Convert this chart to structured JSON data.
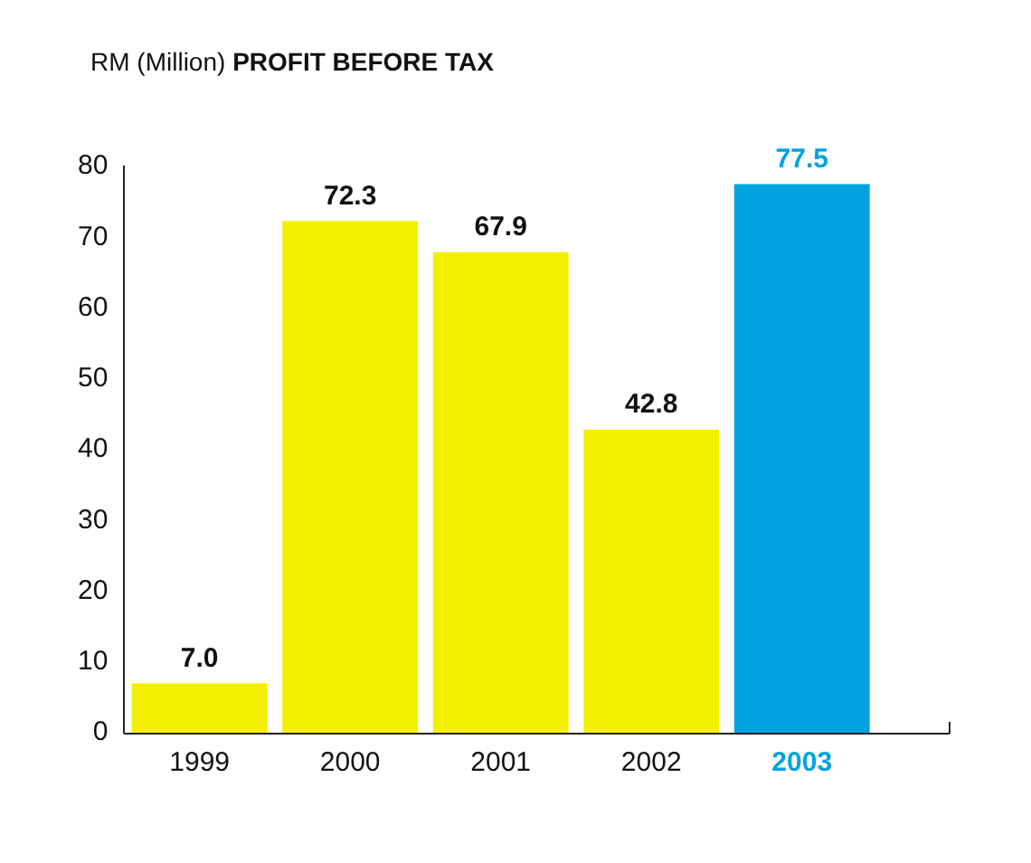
{
  "chart_data": {
    "type": "bar",
    "title": "PROFIT BEFORE TAX",
    "ylabel": "RM (Million)",
    "categories": [
      "1999",
      "2000",
      "2001",
      "2002",
      "2003"
    ],
    "values": [
      7.0,
      72.3,
      67.9,
      42.8,
      77.5
    ],
    "colors": [
      "#f5f000",
      "#f5f000",
      "#f5f000",
      "#f5f000",
      "#00a3e0"
    ],
    "ylim": [
      0,
      80
    ],
    "yticks": [
      0,
      10,
      20,
      30,
      40,
      50,
      60,
      70,
      80
    ],
    "value_labels": [
      "7.0",
      "72.3",
      "67.9",
      "42.8",
      "77.5"
    ],
    "grid": false,
    "legend": false
  }
}
